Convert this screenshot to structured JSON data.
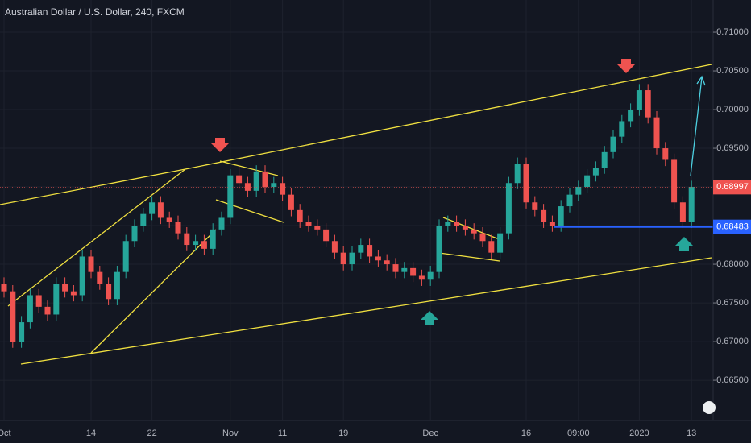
{
  "chart_data": {
    "type": "candlestick",
    "title": "Australian Dollar / U.S. Dollar, 240, FXCM",
    "categories": [
      "Oct",
      null,
      null,
      null,
      null,
      null,
      null,
      null,
      null,
      null,
      "14",
      null,
      null,
      null,
      null,
      null,
      null,
      "22",
      null,
      null,
      null,
      null,
      null,
      null,
      null,
      null,
      "Nov",
      null,
      null,
      null,
      null,
      null,
      "11",
      null,
      null,
      null,
      null,
      null,
      null,
      "19",
      null,
      null,
      null,
      null,
      null,
      null,
      null,
      null,
      null,
      "Dec",
      null,
      null,
      null,
      null,
      null,
      null,
      null,
      null,
      null,
      null,
      "16",
      null,
      null,
      null,
      null,
      null,
      "09:00",
      null,
      null,
      null,
      null,
      null,
      null,
      "2020",
      null,
      null,
      null,
      null,
      null,
      "13"
    ],
    "open": [
      0.6775,
      0.6765,
      0.67,
      0.6725,
      0.676,
      0.6745,
      0.6735,
      0.6775,
      0.6765,
      0.676,
      0.681,
      0.679,
      0.6775,
      0.6755,
      0.679,
      0.683,
      0.685,
      0.6865,
      0.688,
      0.686,
      0.6855,
      0.684,
      0.6825,
      0.683,
      0.682,
      0.6845,
      0.686,
      0.6915,
      0.6905,
      0.6895,
      0.692,
      0.69,
      0.6905,
      0.689,
      0.687,
      0.6855,
      0.685,
      0.6845,
      0.683,
      0.6815,
      0.68,
      0.6815,
      0.6825,
      0.681,
      0.6805,
      0.68,
      0.679,
      0.6795,
      0.6785,
      0.678,
      0.679,
      0.685,
      0.6855,
      0.685,
      0.6845,
      0.684,
      0.683,
      0.6815,
      0.684,
      0.6905,
      0.693,
      0.688,
      0.687,
      0.6855,
      0.685,
      0.6875,
      0.689,
      0.69,
      0.6915,
      0.6925,
      0.6945,
      0.6965,
      0.6985,
      0.7,
      0.7025,
      0.699,
      0.695,
      0.6935,
      0.688,
      0.6855
    ],
    "high": [
      0.6783,
      0.6773,
      0.6733,
      0.6768,
      0.6768,
      0.6753,
      0.6783,
      0.6783,
      0.6773,
      0.6818,
      0.6818,
      0.6798,
      0.6783,
      0.6798,
      0.6838,
      0.6858,
      0.6873,
      0.6888,
      0.6888,
      0.6868,
      0.6863,
      0.6848,
      0.6838,
      0.6838,
      0.6853,
      0.6868,
      0.6923,
      0.6928,
      0.6913,
      0.6928,
      0.6928,
      0.6913,
      0.6913,
      0.6898,
      0.6878,
      0.6863,
      0.6858,
      0.6853,
      0.6838,
      0.6823,
      0.6823,
      0.6833,
      0.6833,
      0.6818,
      0.6813,
      0.6808,
      0.6803,
      0.6803,
      0.6793,
      0.6798,
      0.6858,
      0.6863,
      0.6863,
      0.6858,
      0.6853,
      0.6848,
      0.6838,
      0.6848,
      0.6913,
      0.6938,
      0.6938,
      0.6888,
      0.6878,
      0.6863,
      0.6883,
      0.6898,
      0.6908,
      0.6923,
      0.6933,
      0.6953,
      0.6973,
      0.6993,
      0.7008,
      0.7033,
      0.7033,
      0.6998,
      0.6958,
      0.6943,
      0.6888,
      0.6908
    ],
    "low": [
      0.6757,
      0.6692,
      0.6692,
      0.6717,
      0.6737,
      0.6727,
      0.6727,
      0.6757,
      0.6752,
      0.6752,
      0.6782,
      0.6767,
      0.6747,
      0.6747,
      0.6782,
      0.6822,
      0.6842,
      0.6857,
      0.6852,
      0.6847,
      0.6832,
      0.6817,
      0.6817,
      0.6812,
      0.6812,
      0.6837,
      0.6852,
      0.6897,
      0.6887,
      0.6887,
      0.6892,
      0.6892,
      0.6882,
      0.6862,
      0.6847,
      0.6842,
      0.6837,
      0.6822,
      0.6807,
      0.6792,
      0.6792,
      0.6807,
      0.6802,
      0.6797,
      0.6792,
      0.6782,
      0.6782,
      0.6777,
      0.6772,
      0.6772,
      0.6782,
      0.6842,
      0.6842,
      0.6837,
      0.6832,
      0.6822,
      0.6807,
      0.6807,
      0.6832,
      0.6897,
      0.6872,
      0.6862,
      0.6847,
      0.6842,
      0.6842,
      0.6867,
      0.6882,
      0.6892,
      0.6907,
      0.6917,
      0.6937,
      0.6957,
      0.6977,
      0.6992,
      0.6982,
      0.6942,
      0.6927,
      0.6872,
      0.6847,
      0.6847
    ],
    "close": [
      0.6765,
      0.67,
      0.6725,
      0.676,
      0.6745,
      0.6735,
      0.6775,
      0.6765,
      0.676,
      0.681,
      0.679,
      0.6775,
      0.6755,
      0.679,
      0.683,
      0.685,
      0.6865,
      0.688,
      0.686,
      0.6855,
      0.684,
      0.6825,
      0.683,
      0.682,
      0.6845,
      0.686,
      0.6915,
      0.6905,
      0.6895,
      0.692,
      0.69,
      0.6905,
      0.689,
      0.687,
      0.6855,
      0.685,
      0.6845,
      0.683,
      0.6815,
      0.68,
      0.6815,
      0.6825,
      0.681,
      0.6805,
      0.68,
      0.679,
      0.6795,
      0.6785,
      0.678,
      0.679,
      0.685,
      0.6855,
      0.685,
      0.6845,
      0.684,
      0.683,
      0.6815,
      0.684,
      0.6905,
      0.693,
      0.688,
      0.687,
      0.6855,
      0.685,
      0.6875,
      0.689,
      0.69,
      0.6915,
      0.6925,
      0.6945,
      0.6965,
      0.6985,
      0.7,
      0.7025,
      0.699,
      0.695,
      0.6935,
      0.688,
      0.6855,
      0.69
    ],
    "up_color": "#26a69a",
    "down_color": "#ef5350",
    "ylim": [
      0.6598,
      0.71417
    ],
    "yticks": [
      {
        "value": 0.665,
        "label": "0.66500"
      },
      {
        "value": 0.67,
        "label": "0.67000"
      },
      {
        "value": 0.675,
        "label": "0.67500"
      },
      {
        "value": 0.68,
        "label": "0.68000"
      },
      {
        "value": 0.685,
        "label": "0.68500"
      },
      {
        "value": 0.69,
        "label": "0.69000"
      },
      {
        "value": 0.695,
        "label": "0.69500"
      },
      {
        "value": 0.7,
        "label": "0.70000"
      },
      {
        "value": 0.705,
        "label": "0.70500"
      },
      {
        "value": 0.71,
        "label": "0.71000"
      }
    ],
    "grid": true,
    "current_price": {
      "value": 0.68997,
      "label": "0.68997",
      "color": "#ef5350"
    },
    "level": {
      "value": 0.68483,
      "label": "0.68483",
      "color": "#2962ff"
    }
  }
}
